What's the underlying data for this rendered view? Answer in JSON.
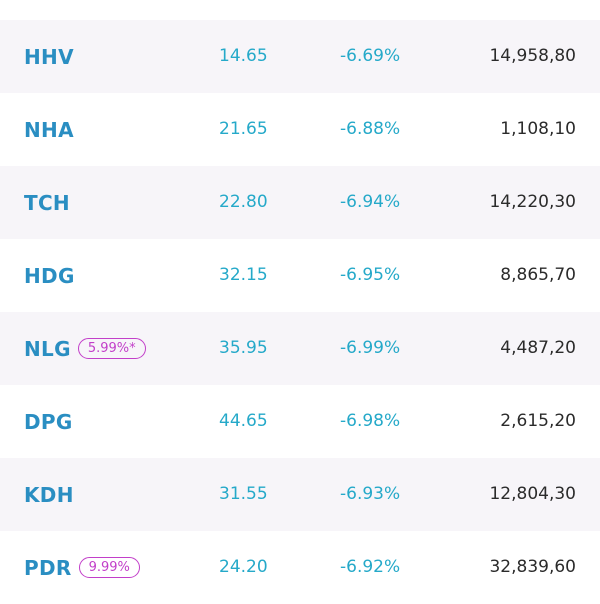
{
  "colors": {
    "ticker": "#2a8ec2",
    "price_down": "#25a9c9",
    "badge": "#c23fc9",
    "volume": "#2b2b2b",
    "row_shade": "#f7f5f9"
  },
  "stocks": [
    {
      "symbol": "HHV",
      "badge": "",
      "price": "14.65",
      "change": "-6.69%",
      "volume": "14,958,80"
    },
    {
      "symbol": "NHA",
      "badge": "",
      "price": "21.65",
      "change": "-6.88%",
      "volume": "1,108,10"
    },
    {
      "symbol": "TCH",
      "badge": "",
      "price": "22.80",
      "change": "-6.94%",
      "volume": "14,220,30"
    },
    {
      "symbol": "HDG",
      "badge": "",
      "price": "32.15",
      "change": "-6.95%",
      "volume": "8,865,70"
    },
    {
      "symbol": "NLG",
      "badge": "5.99%*",
      "price": "35.95",
      "change": "-6.99%",
      "volume": "4,487,20"
    },
    {
      "symbol": "DPG",
      "badge": "",
      "price": "44.65",
      "change": "-6.98%",
      "volume": "2,615,20"
    },
    {
      "symbol": "KDH",
      "badge": "",
      "price": "31.55",
      "change": "-6.93%",
      "volume": "12,804,30"
    },
    {
      "symbol": "PDR",
      "badge": "9.99%",
      "price": "24.20",
      "change": "-6.92%",
      "volume": "32,839,60"
    }
  ]
}
